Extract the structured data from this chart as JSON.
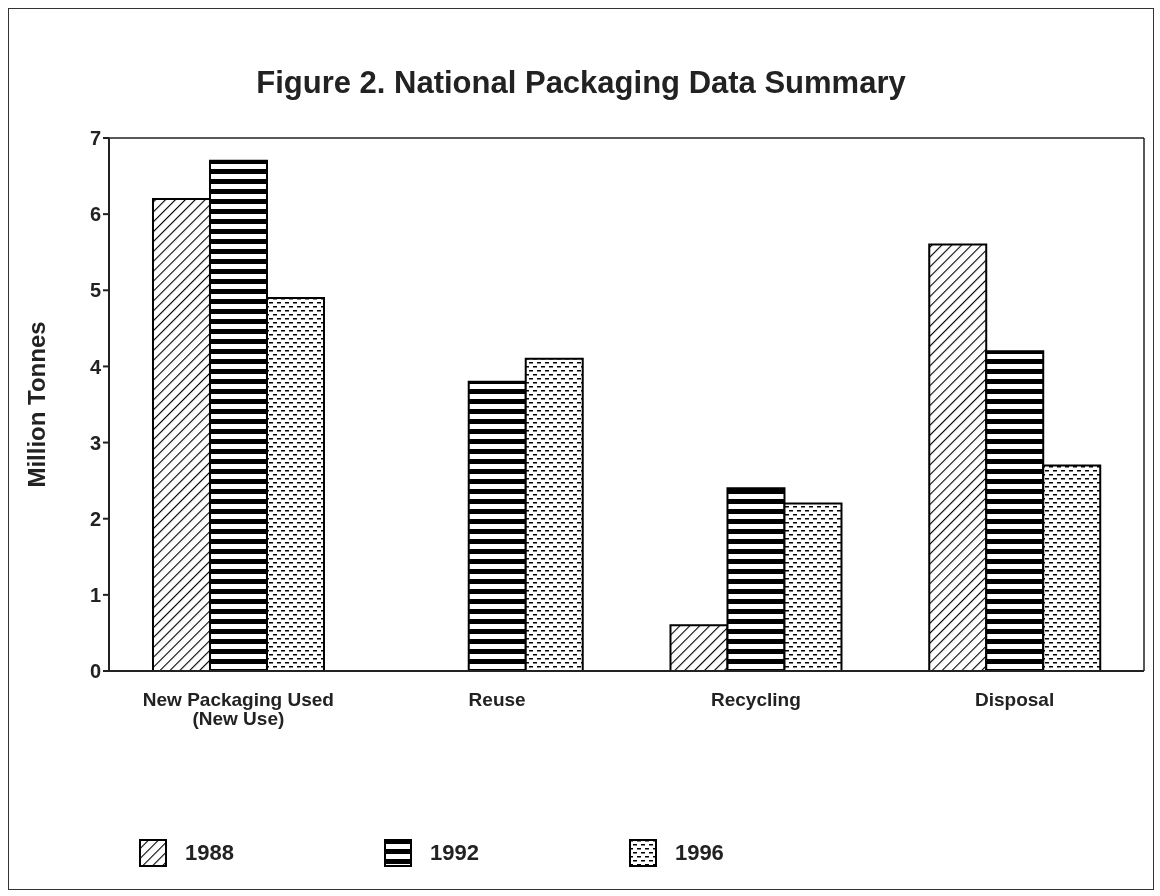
{
  "chart_data": {
    "type": "bar",
    "title": "Figure 2. National Packaging Data Summary",
    "ylabel": "Million Tonnes",
    "categories": [
      "New Packaging Used (New Use)",
      "Reuse",
      "Recycling",
      "Disposal"
    ],
    "series": [
      {
        "name": "1988",
        "color": "#000000",
        "values": [
          6.2,
          null,
          0.6,
          5.6
        ]
      },
      {
        "name": "1992",
        "color": "#000000",
        "values": [
          6.7,
          3.8,
          2.4,
          4.2
        ]
      },
      {
        "name": "1996",
        "color": "#000000",
        "values": [
          4.9,
          4.1,
          2.2,
          2.7
        ]
      }
    ],
    "ylim": [
      0,
      7
    ],
    "yticks": [
      0,
      1,
      2,
      3,
      4,
      5,
      6,
      7
    ],
    "legend": "bottom left"
  }
}
